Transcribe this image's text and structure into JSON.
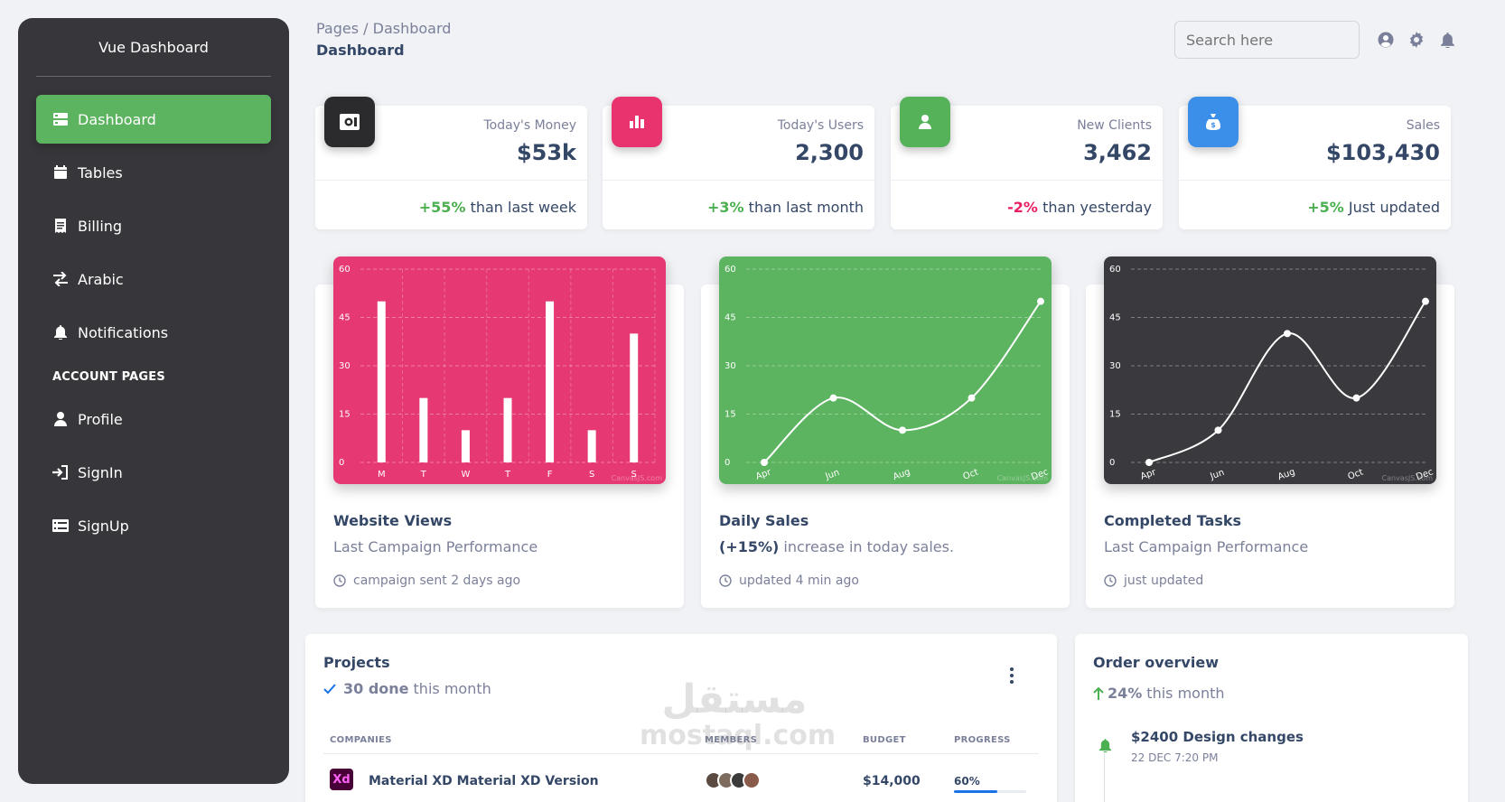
{
  "sidebar": {
    "brand": "Vue Dashboard",
    "items": [
      {
        "label": "Dashboard",
        "icon": "dashboard-icon"
      },
      {
        "label": "Tables",
        "icon": "table-icon"
      },
      {
        "label": "Billing",
        "icon": "receipt-icon"
      },
      {
        "label": "Arabic",
        "icon": "swap-icon"
      },
      {
        "label": "Notifications",
        "icon": "bell-icon"
      }
    ],
    "section_label": "ACCOUNT PAGES",
    "account_items": [
      {
        "label": "Profile",
        "icon": "person-icon"
      },
      {
        "label": "SignIn",
        "icon": "login-icon"
      },
      {
        "label": "SignUp",
        "icon": "assignment-icon"
      }
    ]
  },
  "header": {
    "breadcrumb": "Pages / Dashboard",
    "title": "Dashboard",
    "search_placeholder": "Search here"
  },
  "stats": [
    {
      "label": "Today's Money",
      "value": "$53k",
      "change": "+55%",
      "note": "than last week",
      "icon_color": "#2b2b2e"
    },
    {
      "label": "Today's Users",
      "value": "2,300",
      "change": "+3%",
      "note": "than last month",
      "icon_color": "#e8336f"
    },
    {
      "label": "New Clients",
      "value": "3,462",
      "change": "-2%",
      "note": "than yesterday",
      "icon_color": "#55b259"
    },
    {
      "label": "Sales",
      "value": "$103,430",
      "change": "+5%",
      "note": "Just updated",
      "icon_color": "#3c8fe9"
    }
  ],
  "charts": [
    {
      "title": "Website Views",
      "subtitle": "Last Campaign Performance",
      "subtitle_bold": "",
      "footer": "campaign sent 2 days ago",
      "bg": "#e63872",
      "watermark": "CanvasJS.com"
    },
    {
      "title": "Daily Sales",
      "subtitle_bold": "(+15%)",
      "subtitle": "increase in today sales.",
      "footer": "updated 4 min ago",
      "bg": "#5cb360",
      "watermark": "CanvasJS.com"
    },
    {
      "title": "Completed Tasks",
      "subtitle": "Last Campaign Performance",
      "subtitle_bold": "",
      "footer": "just updated",
      "bg": "#3a3a3e",
      "watermark": "CanvasJS.com"
    }
  ],
  "chart_data": [
    {
      "type": "bar",
      "title": "Website Views",
      "categories": [
        "M",
        "T",
        "W",
        "T",
        "F",
        "S",
        "S"
      ],
      "values": [
        50,
        20,
        10,
        20,
        50,
        10,
        40
      ],
      "ylim": [
        0,
        60
      ],
      "yticks": [
        0,
        15,
        30,
        45,
        60
      ]
    },
    {
      "type": "line",
      "title": "Daily Sales",
      "categories": [
        "Apr",
        "Jun",
        "Aug",
        "Oct",
        "Dec"
      ],
      "values": [
        0,
        20,
        10,
        20,
        50
      ],
      "ylim": [
        0,
        60
      ],
      "yticks": [
        0,
        15,
        30,
        45,
        60
      ]
    },
    {
      "type": "line",
      "title": "Completed Tasks",
      "categories": [
        "Apr",
        "Jun",
        "Aug",
        "Oct",
        "Dec"
      ],
      "values": [
        0,
        10,
        40,
        20,
        50
      ],
      "ylim": [
        0,
        60
      ],
      "yticks": [
        0,
        15,
        30,
        45,
        60
      ]
    }
  ],
  "projects": {
    "title": "Projects",
    "done_count": "30 done",
    "done_note": "this month",
    "columns": [
      "COMPANIES",
      "MEMBERS",
      "BUDGET",
      "PROGRESS"
    ],
    "rows": [
      {
        "company": "Material XD Material XD Version",
        "logo": "Xd",
        "budget": "$14,000",
        "progress_label": "60%",
        "progress": 60
      }
    ]
  },
  "orders": {
    "title": "Order overview",
    "change": "24%",
    "note": "this month",
    "items": [
      {
        "title": "$2400 Design changes",
        "date": "22 DEC 7:20 PM"
      }
    ]
  },
  "watermark": {
    "arabic": "مستقل",
    "latin": "mostaql.com"
  }
}
